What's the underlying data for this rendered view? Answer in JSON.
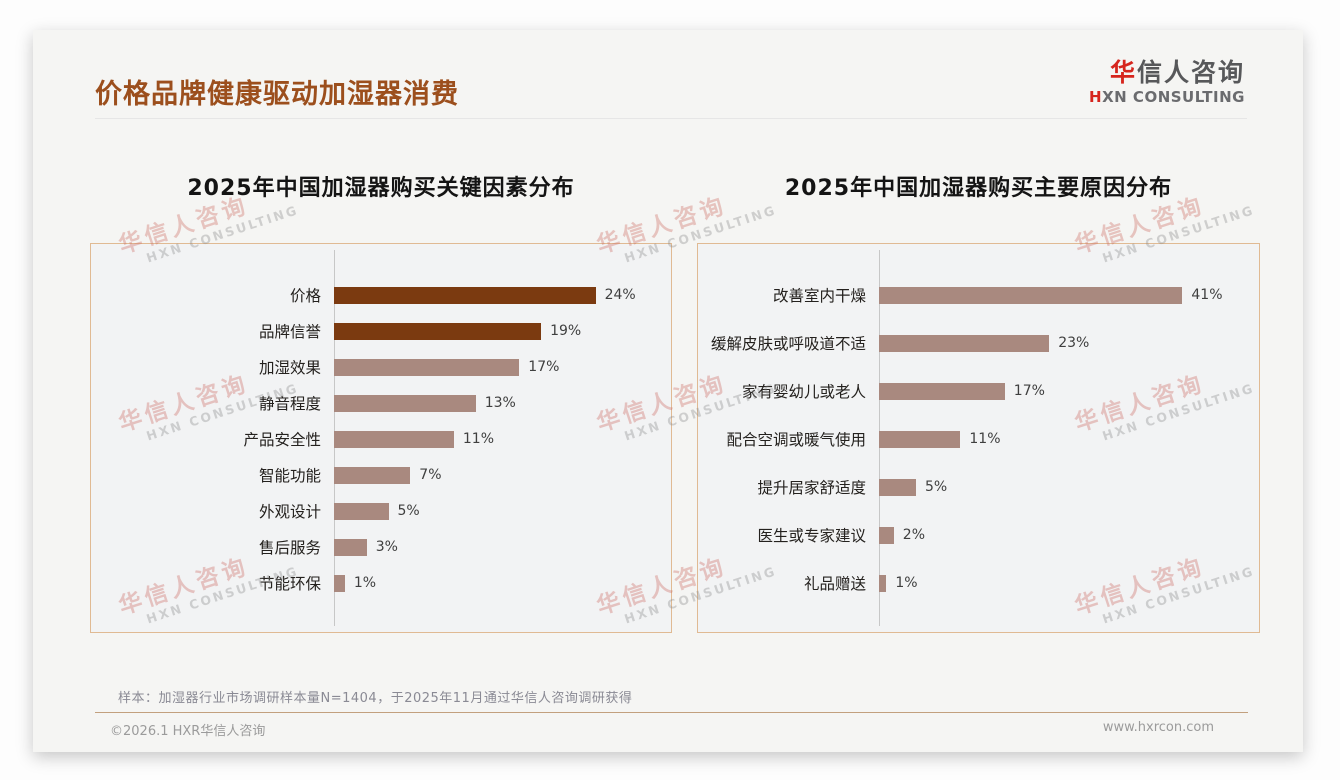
{
  "page": {
    "title": "价格品牌健康驱动加湿器消费",
    "logo": {
      "cn_first": "华",
      "cn_rest": "信人咨询",
      "en_first": "H",
      "en_rest": "XN CONSULTING"
    },
    "footnote": "样本：加湿器行业市场调研样本量N=1404，于2025年11月通过华信人咨询调研获得",
    "copyright": "©2026.1 HXR华信人咨询",
    "website": "www.hxrcon.com",
    "watermark": {
      "line1": "华信人咨询",
      "line2": "HXN CONSULTING"
    }
  },
  "colors": {
    "title_brown": "#9c4f1d",
    "bar_dark_brown": "#7b3a10",
    "bar_light_mauve": "#a9897f",
    "panel_border": "#e0ba93",
    "logo_red": "#d6251d",
    "footer_divider_tan": "#c2a07e",
    "watermark_pink": "#ce706a"
  },
  "chart_data": [
    {
      "type": "bar",
      "orientation": "horizontal",
      "title": "2025年中国加湿器购买关键因素分布",
      "categories": [
        "价格",
        "品牌信誉",
        "加湿效果",
        "静音程度",
        "产品安全性",
        "智能功能",
        "外观设计",
        "售后服务",
        "节能环保"
      ],
      "values": [
        24,
        19,
        17,
        13,
        11,
        7,
        5,
        3,
        1
      ],
      "value_labels": [
        "24%",
        "19%",
        "17%",
        "13%",
        "11%",
        "7%",
        "5%",
        "3%",
        "1%"
      ],
      "unit": "%",
      "xlim": [
        0,
        30
      ],
      "grid": false,
      "legend": false,
      "value_label_position": "right-of-bar",
      "colors": [
        "#7b3a10",
        "#7b3a10",
        "#a9897f",
        "#a9897f",
        "#a9897f",
        "#a9897f",
        "#a9897f",
        "#a9897f",
        "#a9897f"
      ]
    },
    {
      "type": "bar",
      "orientation": "horizontal",
      "title": "2025年中国加湿器购买主要原因分布",
      "categories": [
        "改善室内干燥",
        "缓解皮肤或呼吸道不适",
        "家有婴幼儿或老人",
        "配合空调或暖气使用",
        "提升居家舒适度",
        "医生或专家建议",
        "礼品赠送"
      ],
      "values": [
        41,
        23,
        17,
        11,
        5,
        2,
        1
      ],
      "value_labels": [
        "41%",
        "23%",
        "17%",
        "11%",
        "5%",
        "2%",
        "1%"
      ],
      "unit": "%",
      "xlim": [
        0,
        50
      ],
      "grid": false,
      "legend": false,
      "value_label_position": "right-of-bar",
      "colors": [
        "#a9897f",
        "#a9897f",
        "#a9897f",
        "#a9897f",
        "#a9897f",
        "#a9897f",
        "#a9897f"
      ]
    }
  ]
}
